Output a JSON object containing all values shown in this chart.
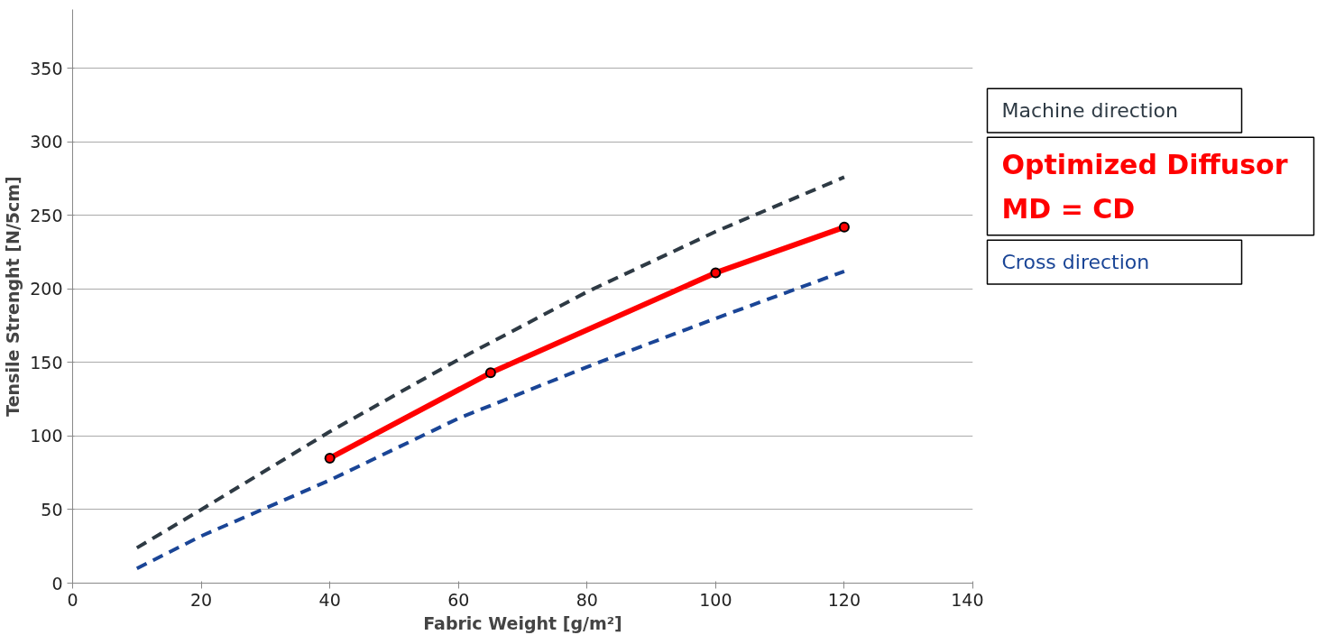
{
  "chart_data": {
    "type": "line",
    "xlabel": "Fabric Weight [g/m²]",
    "ylabel": "Tensile Strenght [N/5cm]",
    "xlim": [
      0,
      140
    ],
    "xticks": [
      0,
      20,
      40,
      60,
      80,
      100,
      120,
      140
    ],
    "ylim": [
      0,
      390
    ],
    "yticks": [
      0,
      50,
      100,
      150,
      200,
      250,
      300,
      350
    ],
    "grid": "y",
    "legend": "right",
    "series": [
      {
        "name": "Machine direction",
        "color": "#2e3a44",
        "line_style": "dashed",
        "marker": "none",
        "x": [
          10,
          20,
          40,
          60,
          80,
          100,
          120
        ],
        "values": [
          24,
          50,
          103,
          152,
          198,
          239,
          276
        ]
      },
      {
        "name": "Optimized Diffusor\nMD = CD",
        "color": "#ff0000",
        "line_style": "solid",
        "marker": "circle",
        "x": [
          40,
          65,
          100,
          120
        ],
        "values": [
          85,
          143,
          211,
          242
        ]
      },
      {
        "name": "Cross direction",
        "color": "#1a4596",
        "line_style": "dashed",
        "marker": "none",
        "x": [
          10,
          20,
          40,
          60,
          80,
          100,
          120
        ],
        "values": [
          10,
          32,
          70,
          112,
          147,
          180,
          212
        ]
      }
    ]
  }
}
